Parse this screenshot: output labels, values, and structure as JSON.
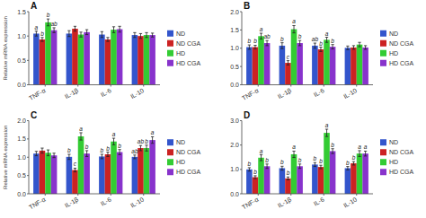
{
  "chart_data": [
    {
      "type": "bar",
      "title": "A",
      "ylabel": "Relative mRNA expression",
      "categories": [
        "TNF-α",
        "IL-1β",
        "IL-6",
        "IL-10"
      ],
      "series": [
        {
          "name": "ND",
          "color": "#3355cc",
          "values": [
            1.05,
            1.05,
            1.03,
            1.02
          ],
          "errors": [
            0.05,
            0.06,
            0.06,
            0.05
          ],
          "sig_labels": [
            "a",
            null,
            null,
            null
          ]
        },
        {
          "name": "ND CGA",
          "color": "#cc2222",
          "values": [
            0.93,
            1.15,
            0.93,
            1.0
          ],
          "errors": [
            0.04,
            0.05,
            0.04,
            0.05
          ],
          "sig_labels": [
            "b",
            null,
            null,
            null
          ]
        },
        {
          "name": "HD",
          "color": "#33cc33",
          "values": [
            1.28,
            1.03,
            1.13,
            1.02
          ],
          "errors": [
            0.07,
            0.05,
            0.06,
            0.05
          ],
          "sig_labels": [
            "b",
            null,
            null,
            null
          ]
        },
        {
          "name": "HD CGA",
          "color": "#8833cc",
          "values": [
            1.12,
            1.08,
            1.14,
            1.02
          ],
          "errors": [
            0.05,
            0.05,
            0.06,
            0.04
          ],
          "sig_labels": [
            "ab",
            null,
            null,
            null
          ]
        }
      ],
      "ylim": [
        0,
        1.5
      ],
      "yticks": [
        {
          "value": 0,
          "label": "0.0"
        },
        0.5,
        {
          "value": 1,
          "label": "1.0"
        },
        1.5
      ],
      "grid": false,
      "legend": "right"
    },
    {
      "type": "bar",
      "title": "B",
      "categories": [
        "TNF-α",
        "IL-1β",
        "IL-6",
        "IL-10"
      ],
      "series": [
        {
          "name": "ND",
          "color": "#3355cc",
          "values": [
            1.03,
            1.07,
            1.07,
            1.01
          ],
          "errors": [
            0.06,
            0.08,
            0.07,
            0.05
          ],
          "sig_labels": [
            "b",
            "b",
            "ab",
            null
          ]
        },
        {
          "name": "ND CGA",
          "color": "#cc2222",
          "values": [
            1.03,
            0.6,
            0.97,
            1.02
          ],
          "errors": [
            0.05,
            0.06,
            0.06,
            0.05
          ],
          "sig_labels": [
            "b",
            "c",
            "b",
            null
          ]
        },
        {
          "name": "HD",
          "color": "#33cc33",
          "values": [
            1.33,
            1.52,
            1.23,
            1.1
          ],
          "errors": [
            0.08,
            0.1,
            0.07,
            0.06
          ],
          "sig_labels": [
            "a",
            "a",
            "a",
            null
          ]
        },
        {
          "name": "HD CGA",
          "color": "#8833cc",
          "values": [
            1.14,
            1.14,
            1.04,
            1.02
          ],
          "errors": [
            0.07,
            0.07,
            0.06,
            0.05
          ],
          "sig_labels": [
            "ab",
            "b",
            "b",
            null
          ]
        }
      ],
      "ylim": [
        0,
        2.0
      ],
      "yticks": [
        {
          "value": 0,
          "label": "0.0"
        },
        0.5,
        {
          "value": 1,
          "label": "1.0"
        },
        1.5,
        {
          "value": 2,
          "label": "2.0"
        }
      ],
      "grid": false,
      "legend": "right"
    },
    {
      "type": "bar",
      "title": "C",
      "ylabel": "Relative mRNA expression",
      "categories": [
        "TNF-α",
        "IL-1β",
        "IL-6",
        "IL-10"
      ],
      "series": [
        {
          "name": "ND",
          "color": "#3355cc",
          "values": [
            1.1,
            1.01,
            1.02,
            1.01
          ],
          "errors": [
            0.06,
            0.07,
            0.06,
            0.05
          ],
          "sig_labels": [
            null,
            "b",
            "b",
            "ab"
          ]
        },
        {
          "name": "ND CGA",
          "color": "#cc2222",
          "values": [
            1.18,
            0.65,
            1.08,
            1.25
          ],
          "errors": [
            0.07,
            0.05,
            0.06,
            0.07
          ],
          "sig_labels": [
            null,
            "c",
            "b",
            "ab"
          ]
        },
        {
          "name": "HD",
          "color": "#33cc33",
          "values": [
            1.12,
            1.57,
            1.43,
            1.25
          ],
          "errors": [
            0.08,
            0.1,
            0.09,
            0.08
          ],
          "sig_labels": [
            null,
            "a",
            "a",
            "b"
          ]
        },
        {
          "name": "HD CGA",
          "color": "#8833cc",
          "values": [
            1.05,
            1.1,
            1.14,
            1.47
          ],
          "errors": [
            0.06,
            0.08,
            0.07,
            0.09
          ],
          "sig_labels": [
            null,
            "b",
            "b",
            "a"
          ]
        }
      ],
      "ylim": [
        0,
        2.0
      ],
      "yticks": [
        {
          "value": 0,
          "label": "0.0"
        },
        0.5,
        {
          "value": 1,
          "label": "1.0"
        },
        1.5,
        {
          "value": 2,
          "label": "2.0"
        }
      ],
      "grid": false,
      "legend": "right"
    },
    {
      "type": "bar",
      "title": "D",
      "categories": [
        "TNF-α",
        "IL-1β",
        "IL-6",
        "IL-10"
      ],
      "series": [
        {
          "name": "ND",
          "color": "#3355cc",
          "values": [
            1.0,
            1.05,
            1.2,
            1.05
          ],
          "errors": [
            0.07,
            0.08,
            0.08,
            0.07
          ],
          "sig_labels": [
            "b",
            "b",
            "b",
            "b"
          ]
        },
        {
          "name": "ND CGA",
          "color": "#cc2222",
          "values": [
            0.68,
            0.63,
            1.1,
            1.25
          ],
          "errors": [
            0.06,
            0.06,
            0.07,
            0.07
          ],
          "sig_labels": [
            "b",
            "b",
            "b",
            "b"
          ]
        },
        {
          "name": "HD",
          "color": "#33cc33",
          "values": [
            1.48,
            1.62,
            2.5,
            1.65
          ],
          "errors": [
            0.12,
            0.13,
            0.15,
            0.12
          ],
          "sig_labels": [
            "a",
            "a",
            "a",
            "a"
          ]
        },
        {
          "name": "HD CGA",
          "color": "#8833cc",
          "values": [
            1.13,
            1.13,
            1.75,
            1.65
          ],
          "errors": [
            0.09,
            0.09,
            0.1,
            0.1
          ],
          "sig_labels": [
            "b",
            "b",
            "b",
            "a"
          ]
        }
      ],
      "ylim": [
        0,
        3.0
      ],
      "yticks": [
        {
          "value": 0,
          "label": "0.0"
        },
        {
          "value": 1,
          "label": "1.0"
        },
        {
          "value": 2,
          "label": "2.0"
        },
        {
          "value": 3,
          "label": "3.0"
        }
      ],
      "grid": false,
      "legend": "right"
    }
  ]
}
